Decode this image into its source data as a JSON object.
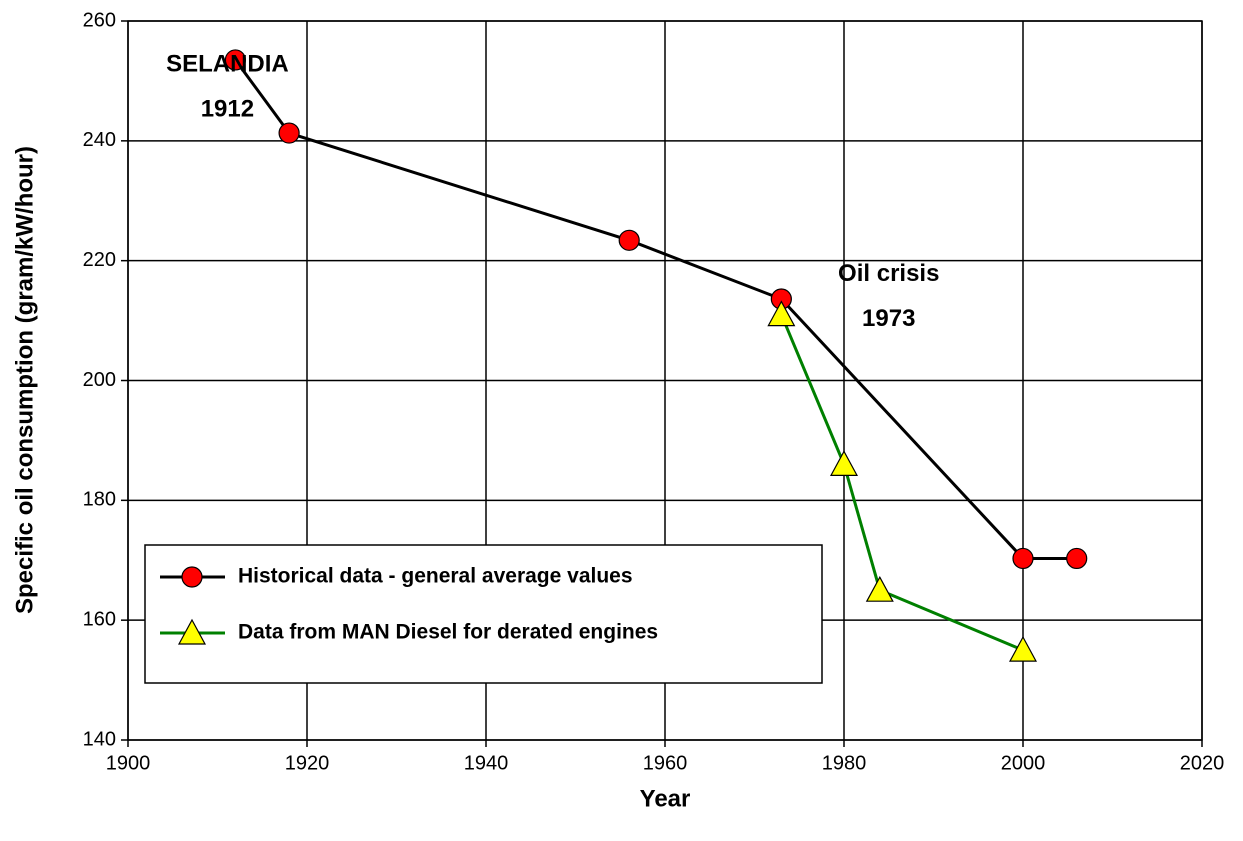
{
  "chart_data": {
    "type": "line",
    "xlabel": "Year",
    "ylabel": "Specific oil consumption (gram/kW/hour)",
    "xlim": [
      1900,
      2020
    ],
    "xticks": [
      1900,
      1920,
      1940,
      1960,
      1980,
      2000,
      2020
    ],
    "ylim": [
      140,
      260
    ],
    "yticks": [
      140,
      160,
      180,
      200,
      220,
      240,
      260
    ],
    "grid": true,
    "legend": "lower left",
    "annotations": [
      {
        "lines": [
          "SELANDIA",
          "1912"
        ],
        "x": 1912,
        "y": 249
      },
      {
        "lines": [
          "Oil crisis",
          "1973"
        ],
        "x": 1985,
        "y": 214
      }
    ],
    "series": [
      {
        "name": "Historical data - general average values",
        "color": "#000000",
        "marker": "circle",
        "marker_color": "#ff0000",
        "x": [
          1912,
          1918,
          1956,
          1973,
          2000,
          2006
        ],
        "values": [
          253.5,
          241.3,
          223.4,
          213.6,
          170.3,
          170.3
        ]
      },
      {
        "name": "Data from MAN Diesel for derated engines",
        "color": "#008000",
        "marker": "triangle",
        "marker_color": "#ffff00",
        "x": [
          1973,
          1980,
          1984,
          2000
        ],
        "values": [
          211,
          186,
          165,
          155
        ]
      }
    ]
  }
}
